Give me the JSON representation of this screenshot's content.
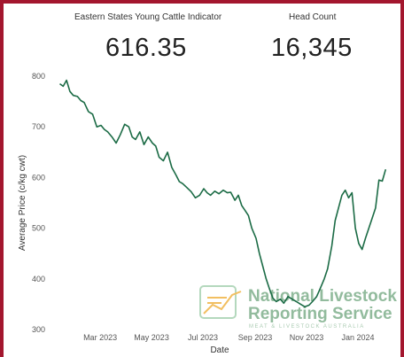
{
  "kpis": [
    {
      "label": "Eastern States Young Cattle Indicator",
      "value": "616.35"
    },
    {
      "label": "Head Count",
      "value": "16,345"
    }
  ],
  "watermark": {
    "line1": "National Livestock",
    "line2": "Reporting Service",
    "line3": "MEAT & LIVESTOCK AUSTRALIA",
    "color": "#7fb08c"
  },
  "chart_data": {
    "type": "line",
    "xlabel": "Date",
    "ylabel": "Average Price (c/kg cwt)",
    "ylim": [
      300,
      800
    ],
    "xlim": [
      "2023-01-01",
      "2024-02-10"
    ],
    "yticks": [
      300,
      400,
      500,
      600,
      700,
      800
    ],
    "xticks": [
      {
        "label": "Mar 2023",
        "date": "2023-03-01"
      },
      {
        "label": "May 2023",
        "date": "2023-05-01"
      },
      {
        "label": "Jul 2023",
        "date": "2023-07-01"
      },
      {
        "label": "Sep 2023",
        "date": "2023-09-01"
      },
      {
        "label": "Nov 2023",
        "date": "2023-11-01"
      },
      {
        "label": "Jan 2024",
        "date": "2024-01-01"
      }
    ],
    "grid": false,
    "line_color": "#1b6b45",
    "series": [
      {
        "x": [
          "2023-01-12",
          "2023-01-16",
          "2023-01-20",
          "2023-01-24",
          "2023-01-28",
          "2023-02-02",
          "2023-02-06",
          "2023-02-10",
          "2023-02-15",
          "2023-02-20",
          "2023-02-25",
          "2023-03-02",
          "2023-03-06",
          "2023-03-10",
          "2023-03-15",
          "2023-03-20",
          "2023-03-25",
          "2023-03-30",
          "2023-04-04",
          "2023-04-08",
          "2023-04-12",
          "2023-04-17",
          "2023-04-22",
          "2023-04-27",
          "2023-05-02",
          "2023-05-06",
          "2023-05-10",
          "2023-05-15",
          "2023-05-20",
          "2023-05-25",
          "2023-05-30",
          "2023-06-03",
          "2023-06-07",
          "2023-06-12",
          "2023-06-17",
          "2023-06-22",
          "2023-06-27",
          "2023-07-02",
          "2023-07-06",
          "2023-07-10",
          "2023-07-15",
          "2023-07-20",
          "2023-07-25",
          "2023-07-30",
          "2023-08-03",
          "2023-08-08",
          "2023-08-12",
          "2023-08-16",
          "2023-08-20",
          "2023-08-24",
          "2023-08-28",
          "2023-09-02",
          "2023-09-06",
          "2023-09-10",
          "2023-09-14",
          "2023-09-18",
          "2023-09-22",
          "2023-09-26",
          "2023-10-01",
          "2023-10-05",
          "2023-10-10",
          "2023-10-15",
          "2023-10-20",
          "2023-10-25",
          "2023-10-30",
          "2023-11-04",
          "2023-11-08",
          "2023-11-13",
          "2023-11-17",
          "2023-11-22",
          "2023-11-26",
          "2023-12-01",
          "2023-12-05",
          "2023-12-09",
          "2023-12-13",
          "2023-12-17",
          "2023-12-21",
          "2023-12-25",
          "2023-12-29",
          "2024-01-02",
          "2024-01-06",
          "2024-01-10",
          "2024-01-14",
          "2024-01-18",
          "2024-01-22",
          "2024-01-26",
          "2024-01-30",
          "2024-02-03"
        ],
        "y": [
          785,
          780,
          792,
          770,
          762,
          760,
          752,
          748,
          730,
          725,
          700,
          703,
          695,
          690,
          680,
          668,
          685,
          705,
          700,
          680,
          675,
          690,
          665,
          680,
          668,
          662,
          640,
          633,
          650,
          620,
          605,
          592,
          588,
          580,
          572,
          560,
          565,
          578,
          570,
          565,
          573,
          568,
          575,
          570,
          571,
          555,
          565,
          545,
          535,
          525,
          500,
          480,
          450,
          425,
          400,
          380,
          362,
          355,
          360,
          352,
          365,
          360,
          355,
          350,
          345,
          348,
          355,
          365,
          380,
          400,
          420,
          465,
          515,
          540,
          565,
          575,
          560,
          570,
          500,
          470,
          458,
          480,
          500,
          520,
          540,
          595,
          593,
          616
        ]
      }
    ]
  }
}
